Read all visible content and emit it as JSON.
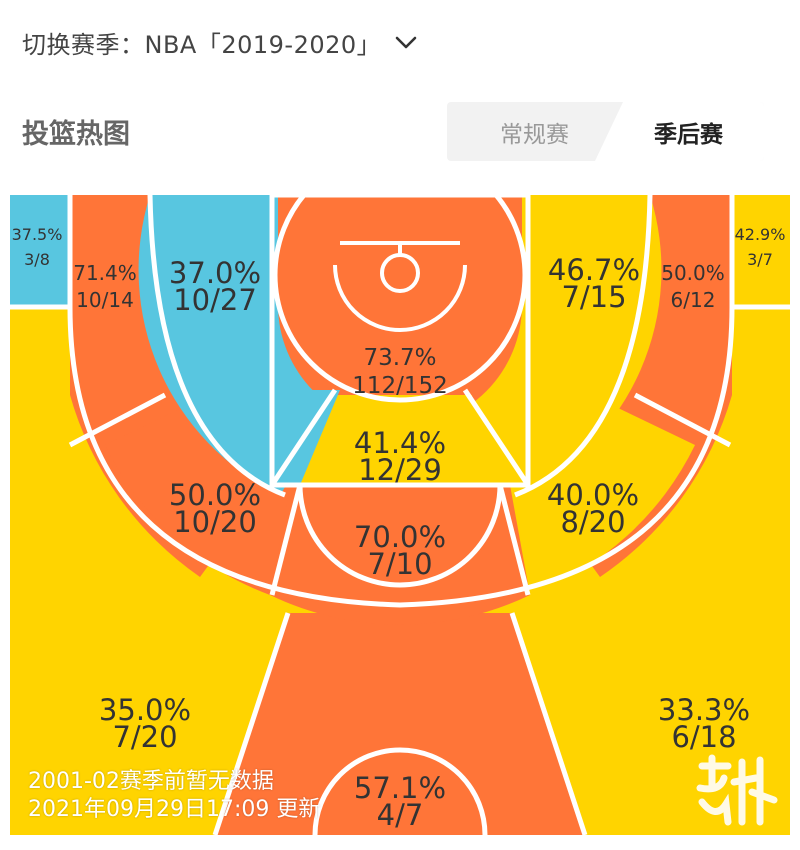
{
  "header": {
    "season_label": "切换赛季：NBA「2019-2020」",
    "chevron_icon": "chevron-down-icon"
  },
  "section": {
    "title": "投篮热图",
    "tabs": [
      {
        "label": "常规赛",
        "active": false
      },
      {
        "label": "季后赛",
        "active": true
      }
    ]
  },
  "colors": {
    "hot": "#ff7538",
    "warm": "#ffd400",
    "cold": "#58c6e0",
    "lines": "#ffffff"
  },
  "zones": [
    {
      "id": "left-corner-three",
      "pct": "37.5%",
      "made": "3/8",
      "level": "cold"
    },
    {
      "id": "left-wing-long-two",
      "pct": "71.4%",
      "made": "10/14",
      "level": "hot"
    },
    {
      "id": "left-short-midrange",
      "pct": "37.0%",
      "made": "10/27",
      "level": "cold"
    },
    {
      "id": "restricted-area",
      "pct": "73.7%",
      "made": "112/152",
      "level": "hot"
    },
    {
      "id": "paint-non-ra",
      "pct": "41.4%",
      "made": "12/29",
      "level": "warm"
    },
    {
      "id": "right-short-midrange",
      "pct": "46.7%",
      "made": "7/15",
      "level": "warm"
    },
    {
      "id": "right-wing-long-two",
      "pct": "50.0%",
      "made": "6/12",
      "level": "hot"
    },
    {
      "id": "right-corner-three",
      "pct": "42.9%",
      "made": "3/7",
      "level": "warm"
    },
    {
      "id": "left-elbow-midrange",
      "pct": "50.0%",
      "made": "10/20",
      "level": "hot"
    },
    {
      "id": "top-key-midrange",
      "pct": "70.0%",
      "made": "7/10",
      "level": "hot"
    },
    {
      "id": "right-elbow-midrange",
      "pct": "40.0%",
      "made": "8/20",
      "level": "warm"
    },
    {
      "id": "left-wing-three",
      "pct": "35.0%",
      "made": "7/20",
      "level": "warm"
    },
    {
      "id": "top-three",
      "pct": "57.1%",
      "made": "4/7",
      "level": "hot"
    },
    {
      "id": "right-wing-three",
      "pct": "33.3%",
      "made": "6/18",
      "level": "warm"
    }
  ],
  "footer": {
    "note_line1": "2001-02赛季前暂无数据",
    "note_line2": "2021年09月29日17:09 更新"
  },
  "watermark": {
    "text": "虎扑",
    "icon": "hupu-logo"
  }
}
